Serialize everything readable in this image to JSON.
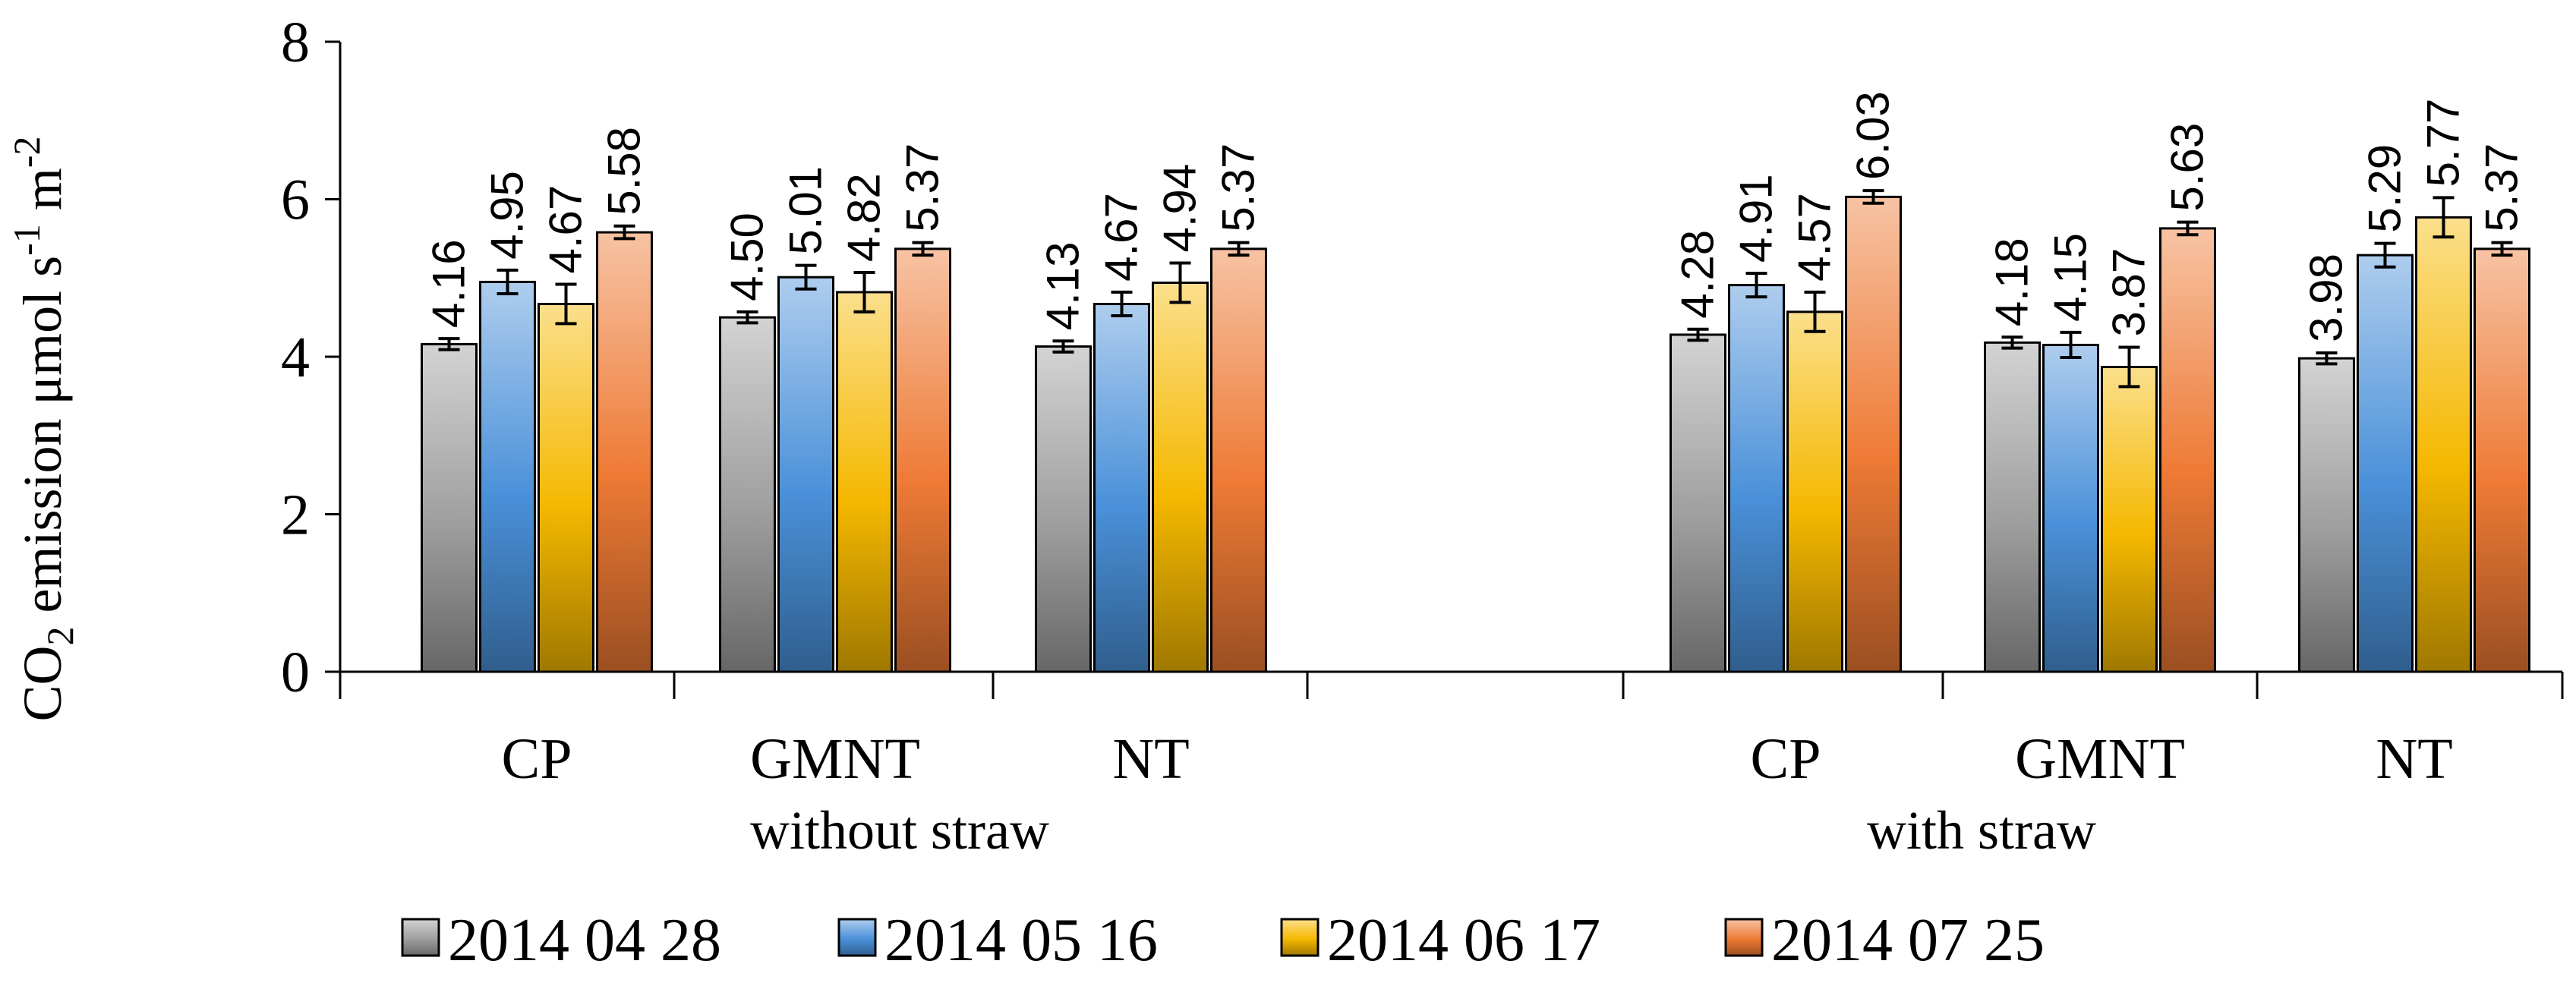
{
  "chart_data": {
    "type": "bar",
    "ylabel": {
      "base": "CO",
      "sub": "2",
      "mid": " emission μmol s",
      "sup1": "-1",
      "mid2": " m",
      "sup2": "-2"
    },
    "ylim": [
      0,
      8
    ],
    "yticks": [
      0,
      2,
      4,
      6,
      8
    ],
    "grid": false,
    "legend_position": "bottom",
    "categories": [
      "CP",
      "GMNT",
      "NT",
      "CP",
      "GMNT",
      "NT"
    ],
    "groups": [
      {
        "label": "without straw",
        "categories": [
          0,
          1,
          2
        ]
      },
      {
        "label": "with straw",
        "categories": [
          3,
          4,
          5
        ]
      }
    ],
    "series": [
      {
        "name": "2014 04 28",
        "color": "#9e9e9e",
        "values": [
          4.16,
          4.5,
          4.13,
          4.28,
          4.18,
          3.98
        ],
        "labels": [
          "4.16",
          "4.50",
          "4.13",
          "4.28",
          "4.18",
          "3.98"
        ],
        "errors": [
          0.07,
          0.07,
          0.07,
          0.07,
          0.07,
          0.07
        ]
      },
      {
        "name": "2014 05 16",
        "color": "#4a90d9",
        "values": [
          4.95,
          5.01,
          4.67,
          4.91,
          4.15,
          5.29
        ],
        "labels": [
          "4.95",
          "5.01",
          "4.67",
          "4.91",
          "4.15",
          "5.29"
        ],
        "errors": [
          0.15,
          0.15,
          0.15,
          0.15,
          0.16,
          0.15
        ]
      },
      {
        "name": "2014 06 17",
        "color": "#f5b800",
        "values": [
          4.67,
          4.82,
          4.94,
          4.57,
          3.87,
          5.77
        ],
        "labels": [
          "4.67",
          "4.82",
          "4.94",
          "4.57",
          "3.87",
          "5.77"
        ],
        "errors": [
          0.25,
          0.25,
          0.25,
          0.25,
          0.25,
          0.25
        ]
      },
      {
        "name": "2014 07 25",
        "color": "#ee7a35",
        "values": [
          5.58,
          5.37,
          5.37,
          6.03,
          5.63,
          5.37
        ],
        "labels": [
          "5.58",
          "5.37",
          "5.37",
          "6.03",
          "5.63",
          "5.37"
        ],
        "errors": [
          0.08,
          0.08,
          0.08,
          0.08,
          0.08,
          0.08
        ]
      }
    ]
  }
}
